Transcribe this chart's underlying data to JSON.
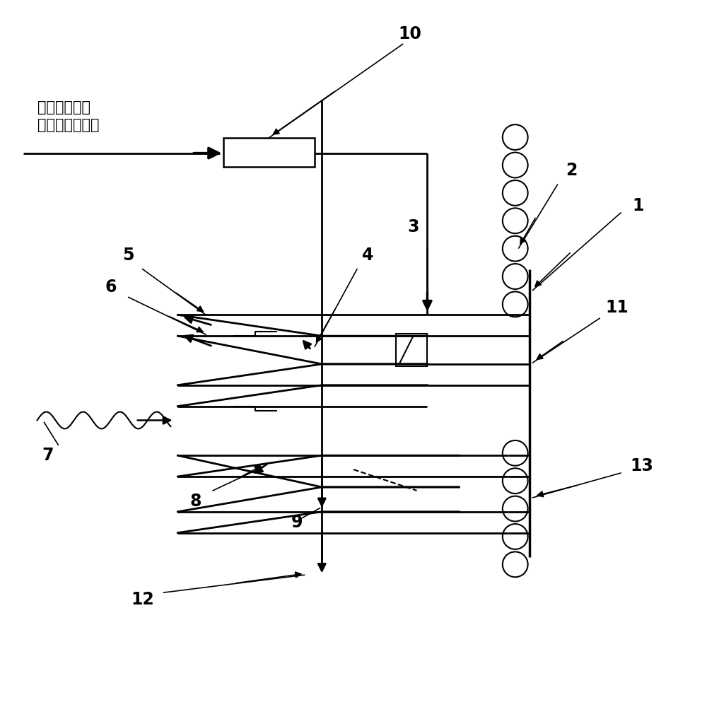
{
  "bg_color": "#ffffff",
  "lc": "#000000",
  "chinese_text": "来自空气预热\n器出口热二次风",
  "lw_main": 2.0,
  "lw_thin": 1.5,
  "coil_r": 0.018,
  "figsize": [
    10,
    10
  ],
  "dpi": 100
}
